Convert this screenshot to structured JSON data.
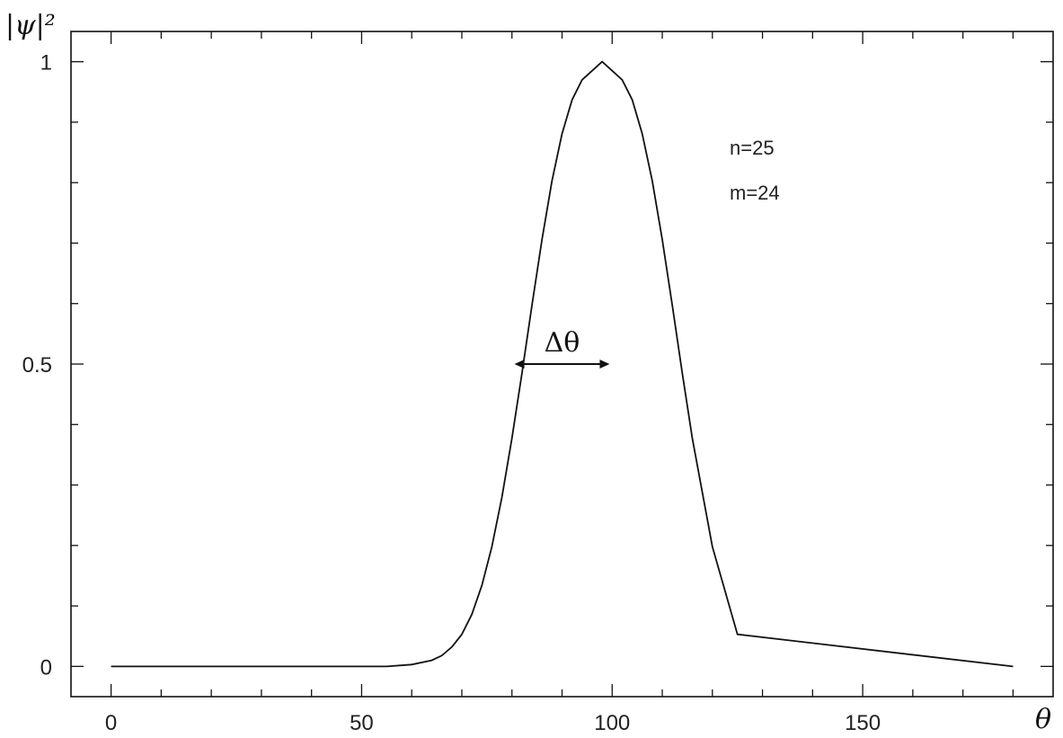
{
  "chart_data": {
    "type": "line",
    "ylabel": "|ψ|²",
    "xlabel": "θ",
    "xlim": [
      -8,
      188
    ],
    "ylim": [
      -0.05,
      1.05
    ],
    "x_ticks": [
      0,
      50,
      100,
      150
    ],
    "x_tick_labels": [
      "0",
      "50",
      "100",
      "150"
    ],
    "y_ticks": [
      0,
      0.5,
      1
    ],
    "y_tick_labels": [
      "0",
      "0.5",
      "1"
    ],
    "grid": false,
    "annotations": [
      "n=25",
      "m=24"
    ],
    "width_marker": {
      "label": "Δθ",
      "x_start": 80.5,
      "x_end": 99.5,
      "y": 0.5
    },
    "series": [
      {
        "x": [
          0,
          55,
          60,
          64,
          66,
          68,
          70,
          72,
          74,
          76,
          78,
          80,
          82,
          84,
          86,
          88,
          90,
          92,
          94,
          96,
          98,
          100,
          102,
          104,
          106,
          108,
          110,
          112,
          114,
          116,
          120,
          125,
          180
        ],
        "values": [
          0,
          0,
          0.003,
          0.01,
          0.018,
          0.032,
          0.053,
          0.086,
          0.134,
          0.198,
          0.28,
          0.377,
          0.485,
          0.597,
          0.706,
          0.803,
          0.881,
          0.937,
          0.97,
          0.985,
          1.0,
          0.985,
          0.97,
          0.937,
          0.881,
          0.803,
          0.706,
          0.597,
          0.485,
          0.377,
          0.198,
          0.053,
          0
        ]
      }
    ]
  }
}
